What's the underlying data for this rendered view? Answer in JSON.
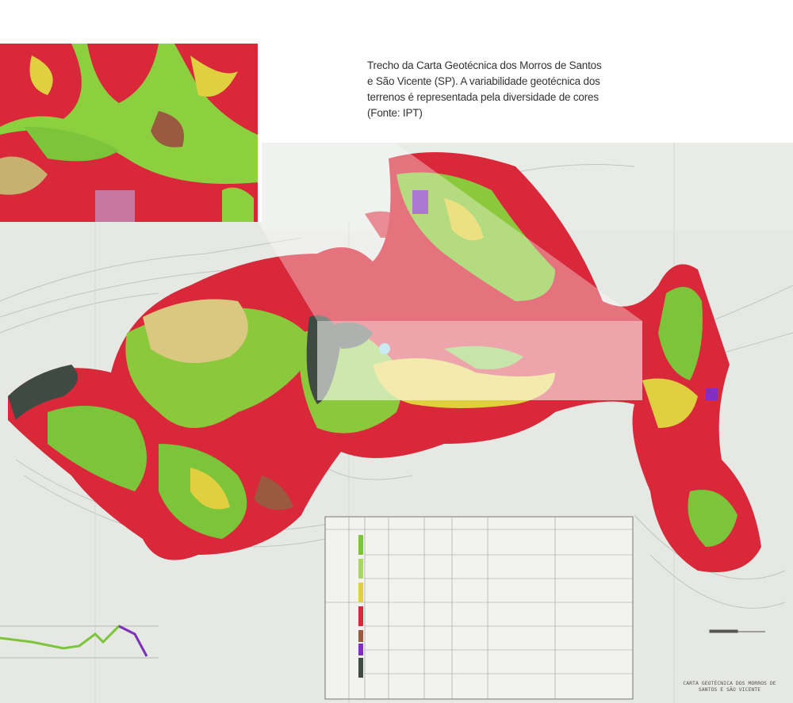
{
  "caption": "Trecho da Carta Geotécnica dos Morros de Santos e São Vicente (SP). A variabilidade geotécnica dos terrenos é representada pela diversidade de cores (Fonte: IPT)",
  "map": {
    "title_line1": "CARTA GEOTÉCNICA DOS MORROS DE",
    "title_line2": "SANTOS E SÃO VICENTE",
    "colors": {
      "red": "#d8283a",
      "green": "#7cc43a",
      "light_green": "#a8d860",
      "yellow": "#e0d040",
      "brown": "#9a5a40",
      "dark_gray": "#3e4a42",
      "purple": "#8030c0",
      "paper": "#e6e8e4"
    }
  }
}
